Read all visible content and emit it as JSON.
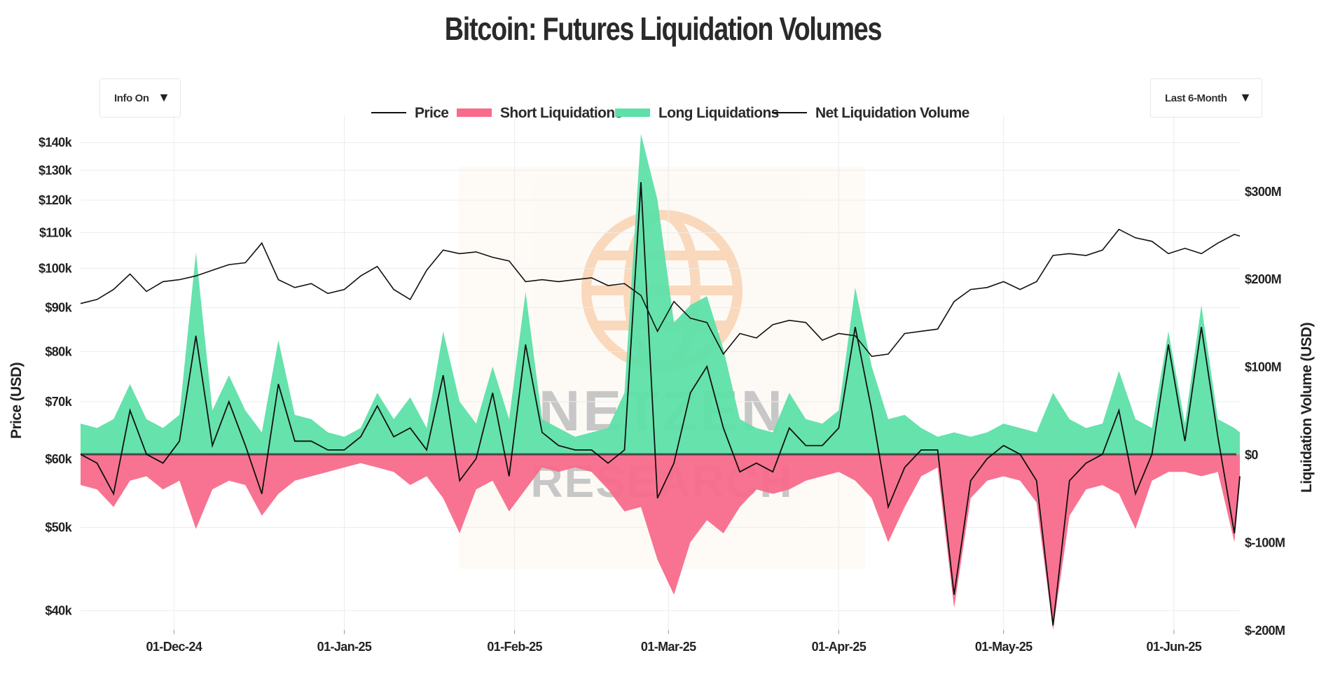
{
  "title": "Bitcoin: Futures Liquidation Volumes",
  "controls": {
    "info_toggle": "Info On",
    "range_select": "Last 6-Month"
  },
  "watermark": {
    "line1": "NETZEN",
    "line2": "RESEARCH"
  },
  "colors": {
    "short": "#f86b8b",
    "long": "#5ee0a8",
    "line": "#111111",
    "watermark": "#f6c49a"
  },
  "chart_data": {
    "type": "area",
    "title": "Bitcoin: Futures Liquidation Volumes",
    "legend": [
      "Price",
      "Short Liquidations",
      "Long Liquidations",
      "Net Liquidation Volume"
    ],
    "legend_position": "top",
    "grid": true,
    "x_ticks": [
      "01-Dec-24",
      "01-Jan-25",
      "01-Feb-25",
      "01-Mar-25",
      "01-Apr-25",
      "01-May-25",
      "01-Jun-25"
    ],
    "x_range": [
      "2024-11-14",
      "2025-06-13"
    ],
    "y_left": {
      "label": "Price (USD)",
      "scale": "log",
      "range": [
        38000,
        145000
      ],
      "ticks": [
        40000,
        50000,
        60000,
        70000,
        80000,
        90000,
        100000,
        110000,
        120000,
        130000,
        140000
      ],
      "tick_labels": [
        "$40k",
        "$50k",
        "$60k",
        "$70k",
        "$80k",
        "$90k",
        "$100k",
        "$110k",
        "$120k",
        "$130k",
        "$140k"
      ]
    },
    "y_right": {
      "label": "Liquidation Volume (USD)",
      "range": [
        -200,
        370
      ],
      "unit": "M",
      "ticks": [
        -200,
        -100,
        0,
        100,
        200,
        300
      ],
      "tick_labels": [
        "$-200M",
        "$-100M",
        "$0",
        "$100M",
        "$200M",
        "$300M"
      ]
    },
    "price": [
      [
        "2024-11-14",
        91000
      ],
      [
        "2024-11-17",
        92000
      ],
      [
        "2024-11-20",
        94500
      ],
      [
        "2024-11-23",
        98500
      ],
      [
        "2024-11-26",
        94000
      ],
      [
        "2024-11-29",
        96500
      ],
      [
        "2024-12-02",
        97000
      ],
      [
        "2024-12-05",
        98000
      ],
      [
        "2024-12-08",
        99500
      ],
      [
        "2024-12-11",
        101000
      ],
      [
        "2024-12-14",
        101500
      ],
      [
        "2024-12-17",
        107000
      ],
      [
        "2024-12-20",
        97000
      ],
      [
        "2024-12-23",
        95000
      ],
      [
        "2024-12-26",
        96000
      ],
      [
        "2024-12-29",
        93500
      ],
      [
        "2025-01-01",
        94500
      ],
      [
        "2025-01-04",
        98000
      ],
      [
        "2025-01-07",
        100500
      ],
      [
        "2025-01-10",
        94500
      ],
      [
        "2025-01-13",
        92000
      ],
      [
        "2025-01-16",
        99500
      ],
      [
        "2025-01-19",
        105000
      ],
      [
        "2025-01-22",
        104000
      ],
      [
        "2025-01-25",
        104500
      ],
      [
        "2025-01-28",
        103000
      ],
      [
        "2025-01-31",
        102000
      ],
      [
        "2025-02-03",
        96500
      ],
      [
        "2025-02-06",
        97000
      ],
      [
        "2025-02-09",
        96500
      ],
      [
        "2025-02-12",
        97000
      ],
      [
        "2025-02-15",
        97500
      ],
      [
        "2025-02-18",
        95500
      ],
      [
        "2025-02-21",
        96000
      ],
      [
        "2025-02-24",
        93000
      ],
      [
        "2025-02-27",
        84500
      ],
      [
        "2025-03-02",
        91500
      ],
      [
        "2025-03-05",
        87500
      ],
      [
        "2025-03-08",
        86500
      ],
      [
        "2025-03-11",
        79500
      ],
      [
        "2025-03-14",
        84000
      ],
      [
        "2025-03-17",
        83000
      ],
      [
        "2025-03-20",
        86000
      ],
      [
        "2025-03-23",
        87000
      ],
      [
        "2025-03-26",
        86500
      ],
      [
        "2025-03-29",
        82500
      ],
      [
        "2025-04-01",
        84000
      ],
      [
        "2025-04-04",
        83500
      ],
      [
        "2025-04-07",
        79000
      ],
      [
        "2025-04-10",
        79500
      ],
      [
        "2025-04-13",
        84000
      ],
      [
        "2025-04-16",
        84500
      ],
      [
        "2025-04-19",
        85000
      ],
      [
        "2025-04-22",
        91500
      ],
      [
        "2025-04-25",
        94500
      ],
      [
        "2025-04-28",
        95000
      ],
      [
        "2025-05-01",
        96500
      ],
      [
        "2025-05-04",
        94500
      ],
      [
        "2025-05-07",
        96500
      ],
      [
        "2025-05-10",
        103500
      ],
      [
        "2025-05-13",
        104000
      ],
      [
        "2025-05-16",
        103500
      ],
      [
        "2025-05-19",
        105000
      ],
      [
        "2025-05-22",
        111000
      ],
      [
        "2025-05-25",
        108500
      ],
      [
        "2025-05-28",
        107500
      ],
      [
        "2025-05-31",
        104000
      ],
      [
        "2025-06-03",
        105500
      ],
      [
        "2025-06-06",
        104000
      ],
      [
        "2025-06-09",
        107000
      ],
      [
        "2025-06-12",
        109500
      ],
      [
        "2025-06-13",
        109000
      ]
    ],
    "short_liquidations": [
      [
        "2024-11-14",
        -35
      ],
      [
        "2024-11-17",
        -40
      ],
      [
        "2024-11-20",
        -60
      ],
      [
        "2024-11-23",
        -30
      ],
      [
        "2024-11-26",
        -25
      ],
      [
        "2024-11-29",
        -40
      ],
      [
        "2024-12-02",
        -30
      ],
      [
        "2024-12-05",
        -85
      ],
      [
        "2024-12-08",
        -40
      ],
      [
        "2024-12-11",
        -30
      ],
      [
        "2024-12-14",
        -35
      ],
      [
        "2024-12-17",
        -70
      ],
      [
        "2024-12-20",
        -45
      ],
      [
        "2024-12-23",
        -30
      ],
      [
        "2024-12-26",
        -25
      ],
      [
        "2024-12-29",
        -20
      ],
      [
        "2025-01-01",
        -15
      ],
      [
        "2025-01-04",
        -10
      ],
      [
        "2025-01-07",
        -15
      ],
      [
        "2025-01-10",
        -20
      ],
      [
        "2025-01-13",
        -35
      ],
      [
        "2025-01-16",
        -25
      ],
      [
        "2025-01-19",
        -50
      ],
      [
        "2025-01-22",
        -90
      ],
      [
        "2025-01-25",
        -40
      ],
      [
        "2025-01-28",
        -30
      ],
      [
        "2025-01-31",
        -65
      ],
      [
        "2025-02-03",
        -40
      ],
      [
        "2025-02-06",
        -15
      ],
      [
        "2025-02-09",
        -20
      ],
      [
        "2025-02-12",
        -15
      ],
      [
        "2025-02-15",
        -20
      ],
      [
        "2025-02-18",
        -40
      ],
      [
        "2025-02-21",
        -65
      ],
      [
        "2025-02-24",
        -60
      ],
      [
        "2025-02-27",
        -120
      ],
      [
        "2025-03-02",
        -160
      ],
      [
        "2025-03-05",
        -100
      ],
      [
        "2025-03-08",
        -75
      ],
      [
        "2025-03-11",
        -90
      ],
      [
        "2025-03-14",
        -60
      ],
      [
        "2025-03-17",
        -40
      ],
      [
        "2025-03-20",
        -45
      ],
      [
        "2025-03-23",
        -40
      ],
      [
        "2025-03-26",
        -30
      ],
      [
        "2025-03-29",
        -25
      ],
      [
        "2025-04-01",
        -20
      ],
      [
        "2025-04-04",
        -30
      ],
      [
        "2025-04-07",
        -50
      ],
      [
        "2025-04-10",
        -100
      ],
      [
        "2025-04-13",
        -60
      ],
      [
        "2025-04-16",
        -25
      ],
      [
        "2025-04-19",
        -15
      ],
      [
        "2025-04-22",
        -175
      ],
      [
        "2025-04-25",
        -50
      ],
      [
        "2025-04-28",
        -30
      ],
      [
        "2025-05-01",
        -25
      ],
      [
        "2025-05-04",
        -30
      ],
      [
        "2025-05-07",
        -55
      ],
      [
        "2025-05-10",
        -200
      ],
      [
        "2025-05-13",
        -70
      ],
      [
        "2025-05-16",
        -40
      ],
      [
        "2025-05-19",
        -35
      ],
      [
        "2025-05-22",
        -45
      ],
      [
        "2025-05-25",
        -85
      ],
      [
        "2025-05-28",
        -30
      ],
      [
        "2025-05-31",
        -20
      ],
      [
        "2025-06-03",
        -20
      ],
      [
        "2025-06-06",
        -25
      ],
      [
        "2025-06-09",
        -20
      ],
      [
        "2025-06-12",
        -100
      ],
      [
        "2025-06-13",
        -35
      ]
    ],
    "long_liquidations": [
      [
        "2024-11-14",
        35
      ],
      [
        "2024-11-17",
        30
      ],
      [
        "2024-11-20",
        40
      ],
      [
        "2024-11-23",
        80
      ],
      [
        "2024-11-26",
        40
      ],
      [
        "2024-11-29",
        30
      ],
      [
        "2024-12-02",
        45
      ],
      [
        "2024-12-05",
        230
      ],
      [
        "2024-12-08",
        50
      ],
      [
        "2024-12-11",
        90
      ],
      [
        "2024-12-14",
        50
      ],
      [
        "2024-12-17",
        25
      ],
      [
        "2024-12-20",
        130
      ],
      [
        "2024-12-23",
        45
      ],
      [
        "2024-12-26",
        40
      ],
      [
        "2024-12-29",
        25
      ],
      [
        "2025-01-01",
        20
      ],
      [
        "2025-01-04",
        30
      ],
      [
        "2025-01-07",
        70
      ],
      [
        "2025-01-10",
        40
      ],
      [
        "2025-01-13",
        65
      ],
      [
        "2025-01-16",
        30
      ],
      [
        "2025-01-19",
        140
      ],
      [
        "2025-01-22",
        60
      ],
      [
        "2025-01-25",
        35
      ],
      [
        "2025-01-28",
        100
      ],
      [
        "2025-01-31",
        40
      ],
      [
        "2025-02-03",
        185
      ],
      [
        "2025-02-06",
        40
      ],
      [
        "2025-02-09",
        30
      ],
      [
        "2025-02-12",
        20
      ],
      [
        "2025-02-15",
        25
      ],
      [
        "2025-02-18",
        30
      ],
      [
        "2025-02-21",
        70
      ],
      [
        "2025-02-24",
        365
      ],
      [
        "2025-02-27",
        290
      ],
      [
        "2025-03-02",
        150
      ],
      [
        "2025-03-05",
        170
      ],
      [
        "2025-03-08",
        180
      ],
      [
        "2025-03-11",
        120
      ],
      [
        "2025-03-14",
        40
      ],
      [
        "2025-03-17",
        30
      ],
      [
        "2025-03-20",
        25
      ],
      [
        "2025-03-23",
        70
      ],
      [
        "2025-03-26",
        40
      ],
      [
        "2025-03-29",
        35
      ],
      [
        "2025-04-01",
        50
      ],
      [
        "2025-04-04",
        190
      ],
      [
        "2025-04-07",
        100
      ],
      [
        "2025-04-10",
        40
      ],
      [
        "2025-04-13",
        45
      ],
      [
        "2025-04-16",
        30
      ],
      [
        "2025-04-19",
        20
      ],
      [
        "2025-04-22",
        25
      ],
      [
        "2025-04-25",
        20
      ],
      [
        "2025-04-28",
        25
      ],
      [
        "2025-05-01",
        35
      ],
      [
        "2025-05-04",
        30
      ],
      [
        "2025-05-07",
        25
      ],
      [
        "2025-05-10",
        70
      ],
      [
        "2025-05-13",
        40
      ],
      [
        "2025-05-16",
        30
      ],
      [
        "2025-05-19",
        35
      ],
      [
        "2025-05-22",
        95
      ],
      [
        "2025-05-25",
        40
      ],
      [
        "2025-05-28",
        30
      ],
      [
        "2025-05-31",
        140
      ],
      [
        "2025-06-03",
        35
      ],
      [
        "2025-06-06",
        170
      ],
      [
        "2025-06-09",
        40
      ],
      [
        "2025-06-12",
        30
      ],
      [
        "2025-06-13",
        25
      ]
    ],
    "net_liquidation_volume": [
      [
        "2024-11-14",
        0
      ],
      [
        "2024-11-17",
        -10
      ],
      [
        "2024-11-20",
        -45
      ],
      [
        "2024-11-23",
        50
      ],
      [
        "2024-11-26",
        0
      ],
      [
        "2024-11-29",
        -10
      ],
      [
        "2024-12-02",
        15
      ],
      [
        "2024-12-05",
        135
      ],
      [
        "2024-12-08",
        10
      ],
      [
        "2024-12-11",
        60
      ],
      [
        "2024-12-14",
        10
      ],
      [
        "2024-12-17",
        -45
      ],
      [
        "2024-12-20",
        80
      ],
      [
        "2024-12-23",
        15
      ],
      [
        "2024-12-26",
        15
      ],
      [
        "2024-12-29",
        5
      ],
      [
        "2025-01-01",
        5
      ],
      [
        "2025-01-04",
        20
      ],
      [
        "2025-01-07",
        55
      ],
      [
        "2025-01-10",
        20
      ],
      [
        "2025-01-13",
        30
      ],
      [
        "2025-01-16",
        5
      ],
      [
        "2025-01-19",
        90
      ],
      [
        "2025-01-22",
        -30
      ],
      [
        "2025-01-25",
        -5
      ],
      [
        "2025-01-28",
        70
      ],
      [
        "2025-01-31",
        -25
      ],
      [
        "2025-02-03",
        125
      ],
      [
        "2025-02-06",
        25
      ],
      [
        "2025-02-09",
        10
      ],
      [
        "2025-02-12",
        5
      ],
      [
        "2025-02-15",
        5
      ],
      [
        "2025-02-18",
        -10
      ],
      [
        "2025-02-21",
        5
      ],
      [
        "2025-02-24",
        310
      ],
      [
        "2025-02-27",
        -50
      ],
      [
        "2025-03-02",
        -10
      ],
      [
        "2025-03-05",
        70
      ],
      [
        "2025-03-08",
        100
      ],
      [
        "2025-03-11",
        30
      ],
      [
        "2025-03-14",
        -20
      ],
      [
        "2025-03-17",
        -10
      ],
      [
        "2025-03-20",
        -20
      ],
      [
        "2025-03-23",
        30
      ],
      [
        "2025-03-26",
        10
      ],
      [
        "2025-03-29",
        10
      ],
      [
        "2025-04-01",
        30
      ],
      [
        "2025-04-04",
        145
      ],
      [
        "2025-04-07",
        50
      ],
      [
        "2025-04-10",
        -60
      ],
      [
        "2025-04-13",
        -15
      ],
      [
        "2025-04-16",
        5
      ],
      [
        "2025-04-19",
        5
      ],
      [
        "2025-04-22",
        -160
      ],
      [
        "2025-04-25",
        -30
      ],
      [
        "2025-04-28",
        -5
      ],
      [
        "2025-05-01",
        10
      ],
      [
        "2025-05-04",
        0
      ],
      [
        "2025-05-07",
        -30
      ],
      [
        "2025-05-10",
        -195
      ],
      [
        "2025-05-13",
        -30
      ],
      [
        "2025-05-16",
        -10
      ],
      [
        "2025-05-19",
        0
      ],
      [
        "2025-05-22",
        50
      ],
      [
        "2025-05-25",
        -45
      ],
      [
        "2025-05-28",
        0
      ],
      [
        "2025-05-31",
        125
      ],
      [
        "2025-06-03",
        15
      ],
      [
        "2025-06-06",
        145
      ],
      [
        "2025-06-09",
        20
      ],
      [
        "2025-06-12",
        -90
      ],
      [
        "2025-06-13",
        -25
      ]
    ]
  }
}
